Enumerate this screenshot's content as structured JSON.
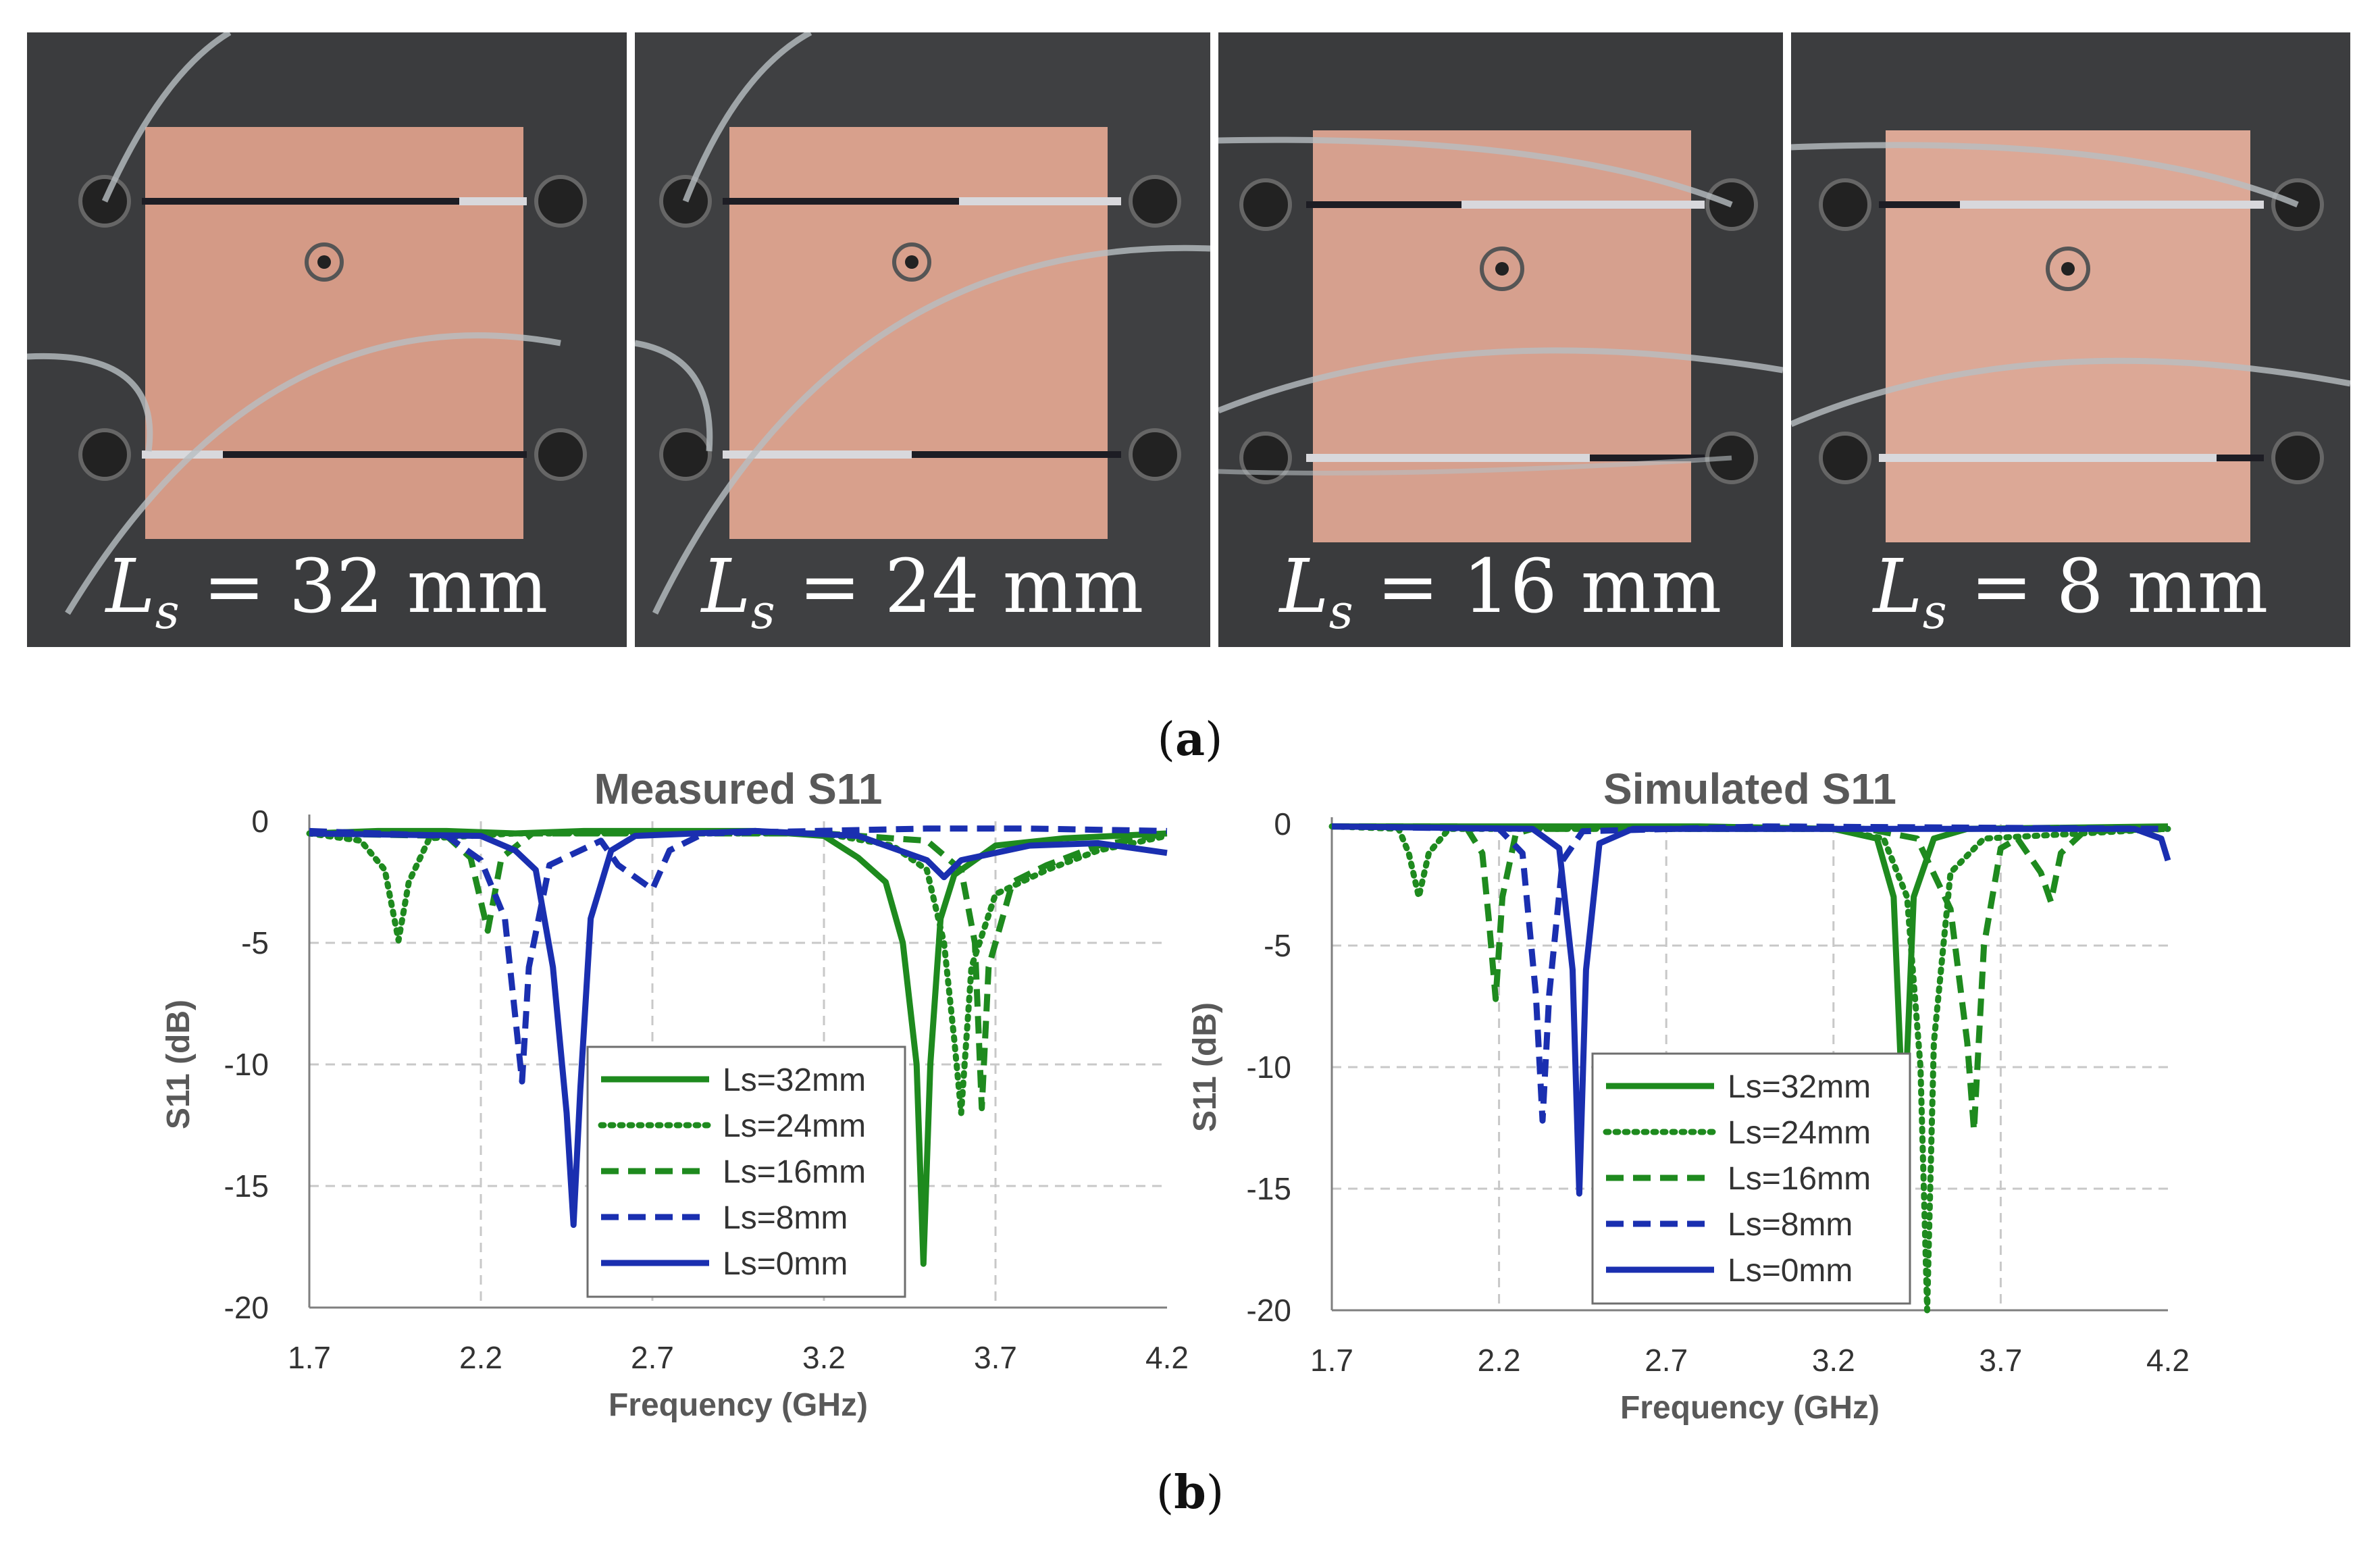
{
  "photos": [
    {
      "var": "L",
      "sub": "s",
      "eq": " = 32 mm"
    },
    {
      "var": "L",
      "sub": "s",
      "eq": " = 24 mm"
    },
    {
      "var": "L",
      "sub": "s",
      "eq": " = 16 mm"
    },
    {
      "var": "L",
      "sub": "s",
      "eq": " = 8 mm"
    }
  ],
  "captions": {
    "a": "(a)",
    "a_letter": "a",
    "b_letter": "b"
  },
  "colors": {
    "green": "#1e8a1e",
    "blue": "#1a2fb0",
    "grid": "#c8c8c8",
    "axis": "#7f7f7f"
  },
  "chart_data": [
    {
      "type": "line",
      "title": "Measured S11",
      "xlabel": "Frequency (GHz)",
      "ylabel": "S11 (dB)",
      "xlim": [
        1.7,
        4.2
      ],
      "ylim": [
        -20,
        0
      ],
      "xticks": [
        "1.7",
        "2.2",
        "2.7",
        "3.2",
        "3.7",
        "4.2"
      ],
      "yticks": [
        "0",
        "-5",
        "-10",
        "-15",
        "-20"
      ],
      "legend": "center-left",
      "series": [
        {
          "name": "Ls=32mm",
          "style": "solid",
          "color": "green",
          "points": [
            [
              1.7,
              -0.5
            ],
            [
              1.9,
              -0.4
            ],
            [
              2.1,
              -0.4
            ],
            [
              2.3,
              -0.5
            ],
            [
              2.5,
              -0.4
            ],
            [
              2.8,
              -0.4
            ],
            [
              3.0,
              -0.4
            ],
            [
              3.2,
              -0.6
            ],
            [
              3.3,
              -1.5
            ],
            [
              3.38,
              -2.5
            ],
            [
              3.43,
              -5.0
            ],
            [
              3.47,
              -10.0
            ],
            [
              3.49,
              -18.2
            ],
            [
              3.51,
              -10.0
            ],
            [
              3.54,
              -4.0
            ],
            [
              3.58,
              -2.2
            ],
            [
              3.7,
              -1.0
            ],
            [
              3.9,
              -0.7
            ],
            [
              4.2,
              -0.5
            ]
          ]
        },
        {
          "name": "Ls=24mm",
          "style": "dotted",
          "color": "green",
          "points": [
            [
              1.7,
              -0.5
            ],
            [
              1.85,
              -0.8
            ],
            [
              1.92,
              -2.0
            ],
            [
              1.96,
              -4.9
            ],
            [
              1.99,
              -2.5
            ],
            [
              2.05,
              -0.7
            ],
            [
              2.3,
              -0.5
            ],
            [
              2.8,
              -0.5
            ],
            [
              3.2,
              -0.5
            ],
            [
              3.4,
              -1.0
            ],
            [
              3.5,
              -2.0
            ],
            [
              3.55,
              -5.0
            ],
            [
              3.58,
              -9.0
            ],
            [
              3.6,
              -12.0
            ],
            [
              3.63,
              -6.0
            ],
            [
              3.7,
              -3.0
            ],
            [
              3.85,
              -2.0
            ],
            [
              4.0,
              -1.2
            ],
            [
              4.2,
              -0.6
            ]
          ]
        },
        {
          "name": "Ls=16mm",
          "style": "dashed",
          "color": "green",
          "points": [
            [
              1.7,
              -0.5
            ],
            [
              2.1,
              -0.6
            ],
            [
              2.17,
              -1.5
            ],
            [
              2.22,
              -4.5
            ],
            [
              2.26,
              -1.5
            ],
            [
              2.35,
              -0.5
            ],
            [
              2.8,
              -0.5
            ],
            [
              3.2,
              -0.5
            ],
            [
              3.5,
              -0.8
            ],
            [
              3.6,
              -2.0
            ],
            [
              3.64,
              -5.0
            ],
            [
              3.66,
              -11.8
            ],
            [
              3.68,
              -6.0
            ],
            [
              3.75,
              -2.5
            ],
            [
              3.85,
              -1.8
            ],
            [
              4.0,
              -1.0
            ],
            [
              4.2,
              -0.5
            ]
          ]
        },
        {
          "name": "Ls=8mm",
          "style": "dashed",
          "color": "blue",
          "points": [
            [
              1.7,
              -0.4
            ],
            [
              2.1,
              -0.6
            ],
            [
              2.2,
              -1.6
            ],
            [
              2.27,
              -4.0
            ],
            [
              2.3,
              -8.0
            ],
            [
              2.32,
              -10.7
            ],
            [
              2.34,
              -6.0
            ],
            [
              2.4,
              -1.8
            ],
            [
              2.55,
              -0.8
            ],
            [
              2.6,
              -1.8
            ],
            [
              2.7,
              -2.8
            ],
            [
              2.75,
              -1.2
            ],
            [
              2.85,
              -0.5
            ],
            [
              3.5,
              -0.3
            ],
            [
              3.8,
              -0.3
            ],
            [
              4.2,
              -0.4
            ]
          ]
        },
        {
          "name": "Ls=0mm",
          "style": "solid",
          "color": "blue",
          "points": [
            [
              1.7,
              -0.5
            ],
            [
              2.2,
              -0.6
            ],
            [
              2.3,
              -1.2
            ],
            [
              2.36,
              -2.0
            ],
            [
              2.41,
              -6.0
            ],
            [
              2.45,
              -12.0
            ],
            [
              2.47,
              -16.6
            ],
            [
              2.49,
              -11.0
            ],
            [
              2.52,
              -4.0
            ],
            [
              2.58,
              -1.2
            ],
            [
              2.65,
              -0.6
            ],
            [
              3.0,
              -0.4
            ],
            [
              3.3,
              -0.6
            ],
            [
              3.5,
              -1.6
            ],
            [
              3.55,
              -2.3
            ],
            [
              3.6,
              -1.6
            ],
            [
              3.8,
              -1.0
            ],
            [
              4.0,
              -0.9
            ],
            [
              4.2,
              -1.3
            ]
          ]
        }
      ]
    },
    {
      "type": "line",
      "title": "Simulated S11",
      "xlabel": "Frequency (GHz)",
      "ylabel": "S11 (dB)",
      "xlim": [
        1.7,
        4.2
      ],
      "ylim": [
        -20,
        0
      ],
      "xticks": [
        "1.7",
        "2.2",
        "2.7",
        "3.2",
        "3.7",
        "4.2"
      ],
      "yticks": [
        "0",
        "-5",
        "-10",
        "-15",
        "-20"
      ],
      "legend": "center-left",
      "series": [
        {
          "name": "Ls=32mm",
          "style": "solid",
          "color": "green",
          "points": [
            [
              1.7,
              -0.1
            ],
            [
              2.8,
              -0.1
            ],
            [
              3.2,
              -0.2
            ],
            [
              3.33,
              -0.6
            ],
            [
              3.38,
              -3.0
            ],
            [
              3.41,
              -12.8
            ],
            [
              3.44,
              -3.0
            ],
            [
              3.5,
              -0.6
            ],
            [
              3.6,
              -0.2
            ],
            [
              4.2,
              -0.1
            ]
          ]
        },
        {
          "name": "Ls=24mm",
          "style": "dotted",
          "color": "green",
          "points": [
            [
              1.7,
              -0.1
            ],
            [
              1.9,
              -0.2
            ],
            [
              1.93,
              -1.2
            ],
            [
              1.96,
              -3.0
            ],
            [
              1.99,
              -1.2
            ],
            [
              2.05,
              -0.2
            ],
            [
              3.2,
              -0.2
            ],
            [
              3.35,
              -0.6
            ],
            [
              3.42,
              -3.0
            ],
            [
              3.46,
              -10.0
            ],
            [
              3.48,
              -20.0
            ],
            [
              3.5,
              -9.0
            ],
            [
              3.55,
              -2.0
            ],
            [
              3.65,
              -0.6
            ],
            [
              4.2,
              -0.2
            ]
          ]
        },
        {
          "name": "Ls=16mm",
          "style": "dashed",
          "color": "green",
          "points": [
            [
              1.7,
              -0.1
            ],
            [
              2.1,
              -0.1
            ],
            [
              2.15,
              -1.2
            ],
            [
              2.17,
              -4.0
            ],
            [
              2.19,
              -7.2
            ],
            [
              2.21,
              -3.0
            ],
            [
              2.25,
              -0.4
            ],
            [
              2.3,
              -0.2
            ],
            [
              3.3,
              -0.2
            ],
            [
              3.45,
              -0.6
            ],
            [
              3.55,
              -3.5
            ],
            [
              3.6,
              -9.0
            ],
            [
              3.62,
              -12.6
            ],
            [
              3.65,
              -5.0
            ],
            [
              3.7,
              -1.0
            ],
            [
              3.75,
              -0.6
            ],
            [
              3.82,
              -2.0
            ],
            [
              3.85,
              -3.2
            ],
            [
              3.88,
              -1.2
            ],
            [
              3.95,
              -0.3
            ],
            [
              4.2,
              -0.2
            ]
          ]
        },
        {
          "name": "Ls=8mm",
          "style": "dashed",
          "color": "blue",
          "points": [
            [
              1.7,
              -0.1
            ],
            [
              2.2,
              -0.2
            ],
            [
              2.27,
              -1.2
            ],
            [
              2.31,
              -7.0
            ],
            [
              2.33,
              -12.2
            ],
            [
              2.35,
              -7.0
            ],
            [
              2.39,
              -1.5
            ],
            [
              2.45,
              -0.3
            ],
            [
              3.0,
              -0.1
            ],
            [
              4.2,
              -0.2
            ]
          ]
        },
        {
          "name": "Ls=0mm",
          "style": "solid",
          "color": "blue",
          "points": [
            [
              1.7,
              -0.1
            ],
            [
              2.3,
              -0.2
            ],
            [
              2.38,
              -1.0
            ],
            [
              2.42,
              -6.0
            ],
            [
              2.44,
              -15.2
            ],
            [
              2.46,
              -6.0
            ],
            [
              2.5,
              -0.8
            ],
            [
              2.6,
              -0.2
            ],
            [
              4.1,
              -0.2
            ],
            [
              4.18,
              -0.6
            ],
            [
              4.2,
              -1.5
            ]
          ]
        }
      ]
    }
  ]
}
